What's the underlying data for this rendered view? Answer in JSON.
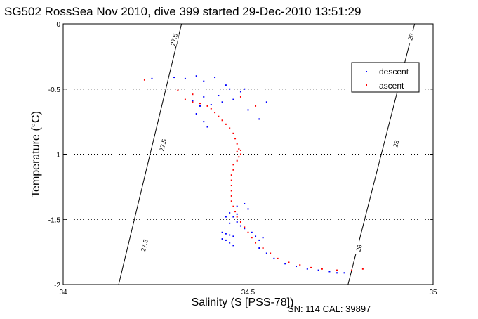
{
  "chart_data": {
    "type": "scatter",
    "title": "SG502 RossSea Nov 2010, dive 399 started 29-Dec-2010 13:51:29",
    "xlabel": "Salinity (S [PSS-78])",
    "ylabel": "Temperature (°C)",
    "footer": "SN: 114  CAL: 39897",
    "xlim": [
      34,
      35
    ],
    "ylim": [
      -2,
      0
    ],
    "x_ticks": [
      34,
      34.5,
      35
    ],
    "x_tick_labels": [
      "34",
      "34.5",
      "35"
    ],
    "y_ticks": [
      -2,
      -1.5,
      -1,
      -0.5,
      0
    ],
    "y_tick_labels": [
      "-2",
      "-1.5",
      "-1",
      "-0.5",
      "0"
    ],
    "grid": true,
    "legend_position": "top-right",
    "colors": {
      "descent": "#0000ff",
      "ascent": "#ff0000",
      "isopycnal": "#000000",
      "grid": "#000000"
    },
    "isopycnals": [
      {
        "label": "27.5",
        "points": [
          [
            34.32,
            0
          ],
          [
            34.15,
            -2
          ]
        ],
        "label_positions": [
          [
            34.3,
            -0.12
          ],
          [
            34.27,
            -0.93
          ],
          [
            34.22,
            -1.7
          ]
        ]
      },
      {
        "label": "28",
        "points": [
          [
            34.95,
            0
          ],
          [
            34.77,
            -2
          ]
        ],
        "label_positions": [
          [
            34.94,
            -0.1
          ],
          [
            34.9,
            -0.92
          ],
          [
            34.8,
            -1.72
          ]
        ]
      }
    ],
    "series": [
      {
        "name": "descent",
        "color": "#0000ff",
        "points": [
          [
            34.24,
            -0.42
          ],
          [
            34.3,
            -0.41
          ],
          [
            34.33,
            -0.42
          ],
          [
            34.36,
            -0.4
          ],
          [
            34.38,
            -0.44
          ],
          [
            34.41,
            -0.41
          ],
          [
            34.44,
            -0.47
          ],
          [
            34.45,
            -0.5
          ],
          [
            34.48,
            -0.52
          ],
          [
            34.49,
            -0.5
          ],
          [
            34.42,
            -0.55
          ],
          [
            34.38,
            -0.56
          ],
          [
            34.35,
            -0.59
          ],
          [
            34.37,
            -0.63
          ],
          [
            34.4,
            -0.62
          ],
          [
            34.43,
            -0.6
          ],
          [
            34.46,
            -0.58
          ],
          [
            34.5,
            -0.66
          ],
          [
            34.55,
            -0.6
          ],
          [
            34.53,
            -0.73
          ],
          [
            34.36,
            -0.69
          ],
          [
            34.38,
            -0.75
          ],
          [
            34.39,
            -0.79
          ],
          [
            34.44,
            -1.48
          ],
          [
            34.45,
            -1.45
          ],
          [
            34.46,
            -1.48
          ],
          [
            34.47,
            -1.46
          ],
          [
            34.45,
            -1.53
          ],
          [
            34.47,
            -1.52
          ],
          [
            34.48,
            -1.55
          ],
          [
            34.49,
            -1.57
          ],
          [
            34.51,
            -1.6
          ],
          [
            34.52,
            -1.63
          ],
          [
            34.53,
            -1.66
          ],
          [
            34.54,
            -1.64
          ],
          [
            34.43,
            -1.6
          ],
          [
            34.44,
            -1.61
          ],
          [
            34.45,
            -1.62
          ],
          [
            34.46,
            -1.63
          ],
          [
            34.43,
            -1.65
          ],
          [
            34.44,
            -1.66
          ],
          [
            34.45,
            -1.68
          ],
          [
            34.46,
            -1.7
          ],
          [
            34.5,
            -1.42
          ],
          [
            34.49,
            -1.38
          ],
          [
            34.47,
            -1.4
          ],
          [
            34.53,
            -1.72
          ],
          [
            34.55,
            -1.76
          ],
          [
            34.57,
            -1.8
          ],
          [
            34.6,
            -1.84
          ],
          [
            34.63,
            -1.86
          ],
          [
            34.66,
            -1.88
          ],
          [
            34.69,
            -1.89
          ],
          [
            34.72,
            -1.9
          ],
          [
            34.74,
            -1.91
          ],
          [
            34.76,
            -1.91
          ]
        ]
      },
      {
        "name": "ascent",
        "color": "#ff0000",
        "points": [
          [
            34.22,
            -0.43
          ],
          [
            34.31,
            -0.51
          ],
          [
            34.35,
            -0.54
          ],
          [
            34.33,
            -0.58
          ],
          [
            34.35,
            -0.6
          ],
          [
            34.37,
            -0.61
          ],
          [
            34.39,
            -0.63
          ],
          [
            34.4,
            -0.65
          ],
          [
            34.41,
            -0.68
          ],
          [
            34.42,
            -0.71
          ],
          [
            34.43,
            -0.74
          ],
          [
            34.44,
            -0.77
          ],
          [
            34.45,
            -0.8
          ],
          [
            34.46,
            -0.84
          ],
          [
            34.465,
            -0.88
          ],
          [
            34.47,
            -0.92
          ],
          [
            34.475,
            -0.96
          ],
          [
            34.47,
            -0.98
          ],
          [
            34.48,
            -0.97
          ],
          [
            34.48,
            -1.0
          ],
          [
            34.475,
            -1.02
          ],
          [
            34.47,
            -1.05
          ],
          [
            34.46,
            -1.08
          ],
          [
            34.46,
            -1.12
          ],
          [
            34.455,
            -1.16
          ],
          [
            34.455,
            -1.2
          ],
          [
            34.455,
            -1.24
          ],
          [
            34.455,
            -1.28
          ],
          [
            34.455,
            -1.32
          ],
          [
            34.455,
            -1.36
          ],
          [
            34.46,
            -1.4
          ],
          [
            34.465,
            -1.44
          ],
          [
            34.47,
            -1.48
          ],
          [
            34.48,
            -1.52
          ],
          [
            34.49,
            -1.56
          ],
          [
            34.5,
            -1.6
          ],
          [
            34.51,
            -1.64
          ],
          [
            34.52,
            -1.68
          ],
          [
            34.54,
            -1.72
          ],
          [
            34.56,
            -1.76
          ],
          [
            34.58,
            -1.8
          ],
          [
            34.61,
            -1.83
          ],
          [
            34.64,
            -1.85
          ],
          [
            34.67,
            -1.87
          ],
          [
            34.7,
            -1.88
          ],
          [
            34.74,
            -1.89
          ],
          [
            34.78,
            -1.89
          ],
          [
            34.81,
            -1.88
          ],
          [
            34.52,
            -0.63
          ],
          [
            34.48,
            -0.56
          ]
        ]
      }
    ]
  }
}
